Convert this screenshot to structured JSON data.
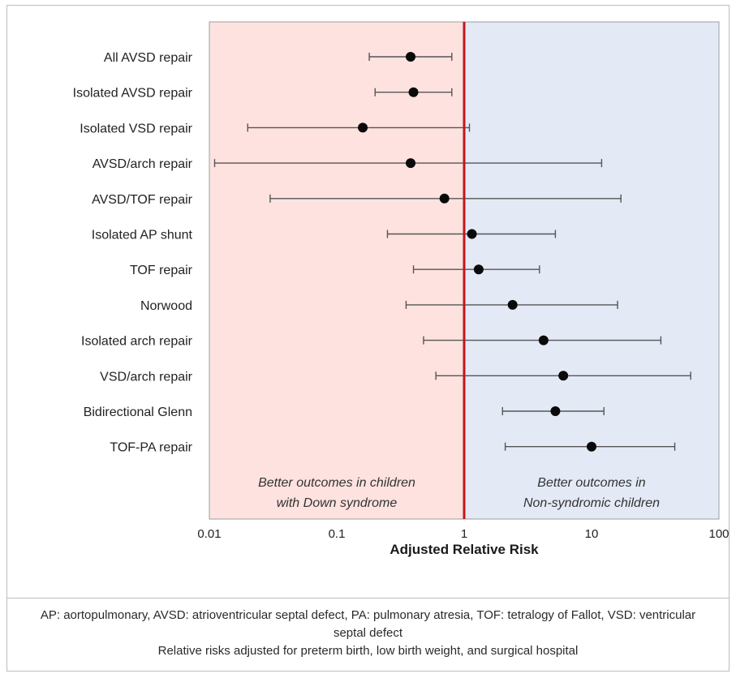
{
  "chart_data": {
    "type": "forest",
    "xlabel": "Adjusted Relative Risk",
    "xscale": "log",
    "xlim": [
      0.01,
      100
    ],
    "xticks": [
      0.01,
      0.1,
      1,
      10,
      100
    ],
    "xtick_labels": [
      "0.01",
      "0.1",
      "1",
      "10",
      "100"
    ],
    "reference_line": 1,
    "regions": [
      {
        "side": "left",
        "color": "#fde2df",
        "label": "Better outcomes in children with Down syndrome",
        "label_lines": [
          "Better outcomes in children",
          "with Down syndrome"
        ]
      },
      {
        "side": "right",
        "color": "#e3e9f5",
        "label": "Better outcomes in Non-syndromic children",
        "label_lines": [
          "Better outcomes in",
          "Non-syndromic children"
        ]
      }
    ],
    "reference_line_color": "#c0181c",
    "rows": [
      {
        "label": "All AVSD repair",
        "estimate": 0.38,
        "lower": 0.18,
        "upper": 0.8
      },
      {
        "label": "Isolated AVSD repair",
        "estimate": 0.4,
        "lower": 0.2,
        "upper": 0.8
      },
      {
        "label": "Isolated VSD repair",
        "estimate": 0.16,
        "lower": 0.02,
        "upper": 1.1
      },
      {
        "label": "AVSD/arch repair",
        "estimate": 0.38,
        "lower": 0.011,
        "upper": 12
      },
      {
        "label": "AVSD/TOF repair",
        "estimate": 0.7,
        "lower": 0.03,
        "upper": 17
      },
      {
        "label": "Isolated AP shunt",
        "estimate": 1.15,
        "lower": 0.25,
        "upper": 5.2
      },
      {
        "label": "TOF repair",
        "estimate": 1.3,
        "lower": 0.4,
        "upper": 3.9
      },
      {
        "label": "Norwood",
        "estimate": 2.4,
        "lower": 0.35,
        "upper": 16
      },
      {
        "label": "Isolated arch repair",
        "estimate": 4.2,
        "lower": 0.48,
        "upper": 35
      },
      {
        "label": "VSD/arch repair",
        "estimate": 6,
        "lower": 0.6,
        "upper": 60
      },
      {
        "label": "Bidirectional Glenn",
        "estimate": 5.2,
        "lower": 2,
        "upper": 12.5
      },
      {
        "label": "TOF-PA repair",
        "estimate": 10,
        "lower": 2.1,
        "upper": 45
      }
    ]
  },
  "notes": {
    "line1": "AP: aortopulmonary, AVSD: atrioventricular septal defect, PA: pulmonary atresia, TOF: tetralogy of Fallot, VSD: ventricular septal defect",
    "line2": "Relative risks adjusted for preterm birth, low birth weight, and surgical hospital"
  }
}
